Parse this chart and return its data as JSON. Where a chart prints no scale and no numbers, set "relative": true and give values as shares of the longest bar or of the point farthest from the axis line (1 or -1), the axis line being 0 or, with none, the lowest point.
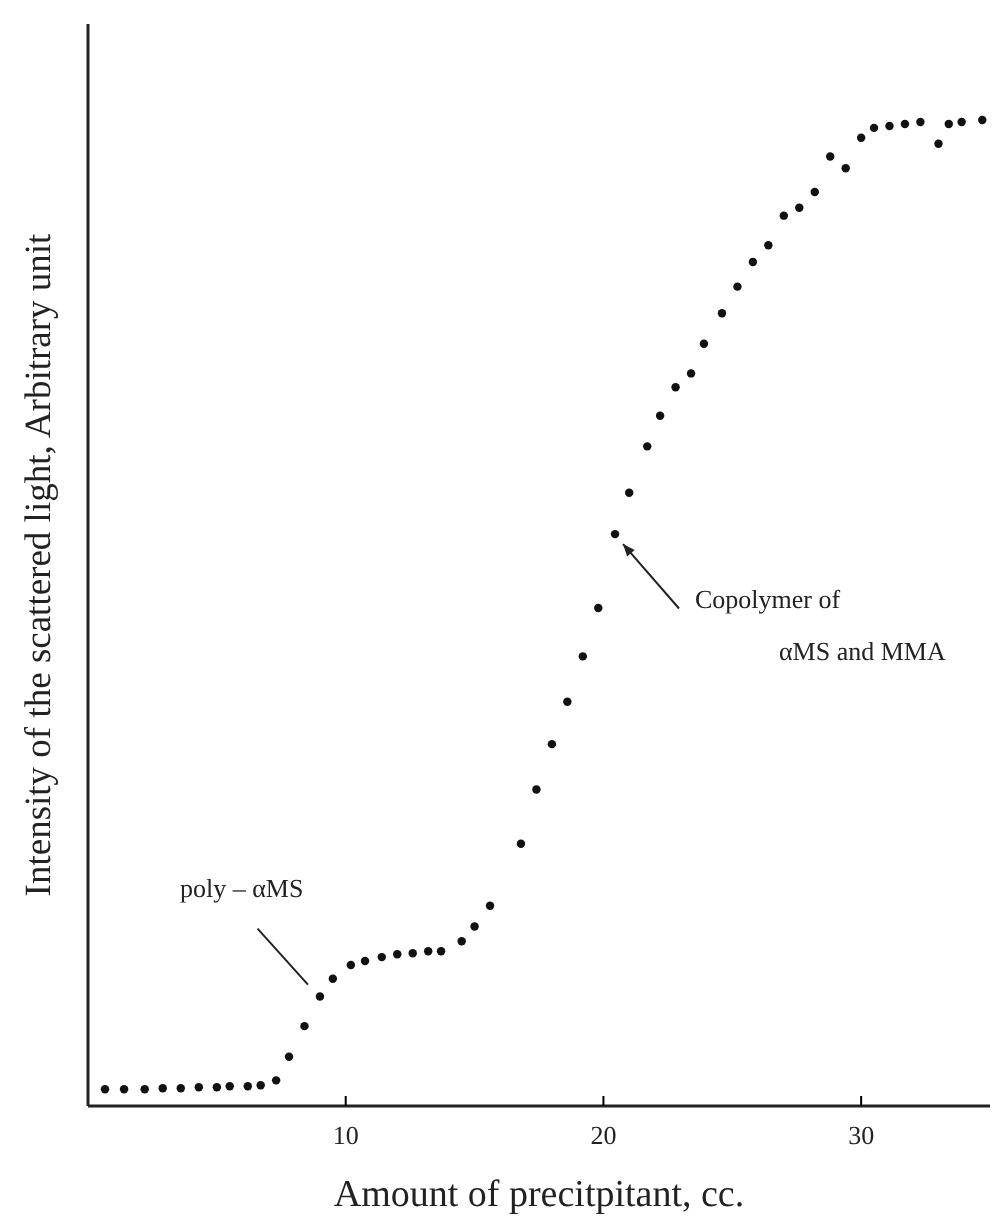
{
  "chart_data": {
    "type": "scatter",
    "xlabel": "Amount of precitpitant, cc.",
    "ylabel": "Intensity of the scattered light, Arbitrary unit",
    "relative": true,
    "marker": "circle",
    "xlim": [
      0,
      35
    ],
    "xticks": [
      10,
      20,
      30
    ],
    "annotations": [
      {
        "text": "poly – αMS",
        "x": 9.0,
        "y": 0.111
      },
      {
        "text": "Copolymer of\nαMS and MMA",
        "x": 20.45,
        "y": 0.58
      }
    ],
    "series": [
      {
        "color": "#111111",
        "x": [
          0.66,
          1.4,
          2.2,
          2.9,
          3.6,
          4.3,
          5.0,
          5.5,
          6.2,
          6.7,
          7.3,
          7.8,
          8.4,
          9.0,
          9.5,
          10.2,
          10.75,
          11.4,
          12.0,
          12.6,
          13.2,
          13.7,
          14.5,
          15.0,
          15.6,
          16.8,
          17.4,
          18.0,
          18.6,
          19.2,
          19.8,
          20.45,
          21.0,
          21.7,
          22.2,
          22.8,
          23.4,
          23.9,
          24.6,
          25.2,
          25.8,
          26.4,
          27.0,
          27.6,
          28.2,
          28.8,
          29.4,
          30.0,
          30.5,
          31.1,
          31.7,
          32.3,
          33.0,
          33.4,
          33.9,
          34.7
        ],
        "values": [
          0.017,
          0.017,
          0.017,
          0.018,
          0.018,
          0.019,
          0.019,
          0.02,
          0.02,
          0.021,
          0.026,
          0.05,
          0.081,
          0.111,
          0.129,
          0.143,
          0.147,
          0.151,
          0.154,
          0.155,
          0.157,
          0.157,
          0.167,
          0.182,
          0.203,
          0.266,
          0.321,
          0.367,
          0.41,
          0.456,
          0.505,
          0.58,
          0.622,
          0.669,
          0.7,
          0.729,
          0.743,
          0.773,
          0.804,
          0.831,
          0.856,
          0.873,
          0.903,
          0.911,
          0.927,
          0.963,
          0.951,
          0.982,
          0.992,
          0.994,
          0.996,
          0.998,
          0.976,
          0.996,
          0.998,
          1.0
        ]
      }
    ]
  }
}
